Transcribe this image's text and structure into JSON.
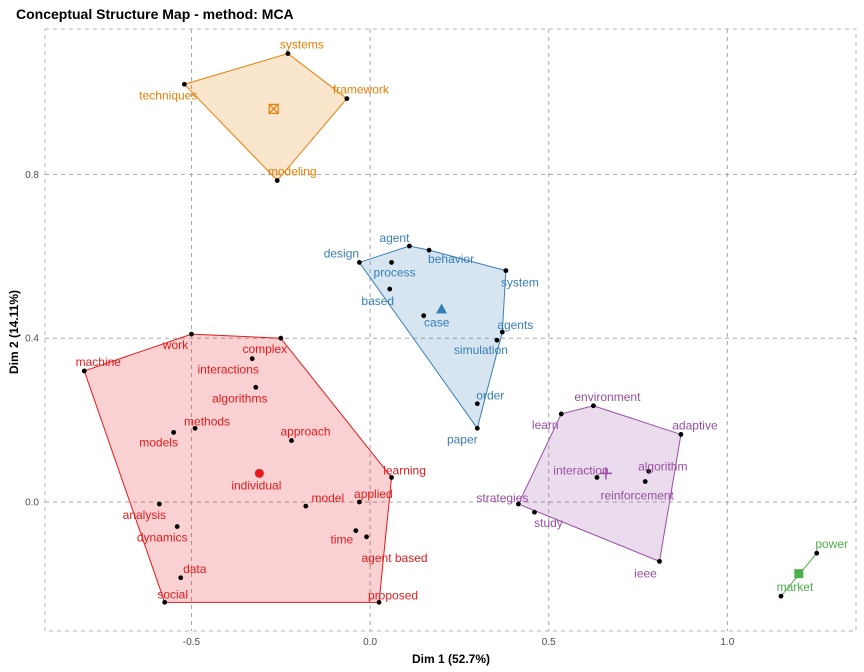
{
  "chart_data": {
    "type": "scatter",
    "title": "Conceptual Structure Map - method: MCA",
    "xlabel": "Dim 1 (52.7%)",
    "ylabel": "Dim 2 (14.11%)",
    "xlim": [
      -0.91,
      1.36
    ],
    "ylim": [
      -0.315,
      1.155
    ],
    "x_ticks": [
      -0.5,
      0.0,
      0.5,
      1.0
    ],
    "x_tick_labels": [
      "-0.5",
      "0.0",
      "0.5",
      "1.0"
    ],
    "y_ticks": [
      0.0,
      0.4,
      0.8
    ],
    "y_tick_labels": [
      "0.0",
      "0.4",
      "0.8"
    ],
    "grid": "dashed",
    "clusters": [
      {
        "color": "#E41A1C",
        "centroid": {
          "x": -0.31,
          "y": 0.07,
          "shape": "circle"
        },
        "hull": [
          [
            -0.8,
            0.32
          ],
          [
            -0.5,
            0.41
          ],
          [
            -0.25,
            0.4
          ],
          [
            0.06,
            0.06
          ],
          [
            0.025,
            -0.245
          ],
          [
            -0.575,
            -0.245
          ]
        ],
        "points": [
          {
            "label": "machine",
            "x": -0.8,
            "y": 0.32
          },
          {
            "label": "work",
            "x": -0.5,
            "y": 0.41
          },
          {
            "label": "complex",
            "x": -0.25,
            "y": 0.4
          },
          {
            "label": "interactions",
            "x": -0.33,
            "y": 0.35
          },
          {
            "label": "algorithms",
            "x": -0.32,
            "y": 0.28
          },
          {
            "label": "methods",
            "x": -0.49,
            "y": 0.18
          },
          {
            "label": "approach",
            "x": -0.22,
            "y": 0.15
          },
          {
            "label": "models",
            "x": -0.55,
            "y": 0.17
          },
          {
            "label": "individual",
            "x": -0.31,
            "y": 0.07
          },
          {
            "label": "learning",
            "x": 0.06,
            "y": 0.06
          },
          {
            "label": "applied",
            "x": -0.03,
            "y": 0.0
          },
          {
            "label": "model",
            "x": -0.18,
            "y": -0.01
          },
          {
            "label": "analysis",
            "x": -0.59,
            "y": -0.005
          },
          {
            "label": "time",
            "x": -0.04,
            "y": -0.07
          },
          {
            "label": "dynamics",
            "x": -0.54,
            "y": -0.06
          },
          {
            "label": "agent based",
            "x": -0.01,
            "y": -0.085
          },
          {
            "label": "data",
            "x": -0.53,
            "y": -0.185
          },
          {
            "label": "social",
            "x": -0.575,
            "y": -0.245
          },
          {
            "label": "proposed",
            "x": 0.025,
            "y": -0.245
          }
        ]
      },
      {
        "color": "#377EB8",
        "centroid": {
          "x": 0.2,
          "y": 0.47,
          "shape": "triangle"
        },
        "hull": [
          [
            -0.03,
            0.585
          ],
          [
            0.11,
            0.625
          ],
          [
            0.165,
            0.615
          ],
          [
            0.38,
            0.565
          ],
          [
            0.37,
            0.415
          ],
          [
            0.3,
            0.18
          ]
        ],
        "points": [
          {
            "label": "design",
            "x": -0.03,
            "y": 0.585
          },
          {
            "label": "agent",
            "x": 0.11,
            "y": 0.625
          },
          {
            "label": "behavior",
            "x": 0.165,
            "y": 0.615
          },
          {
            "label": "process",
            "x": 0.06,
            "y": 0.585
          },
          {
            "label": "system",
            "x": 0.38,
            "y": 0.565
          },
          {
            "label": "based",
            "x": 0.055,
            "y": 0.52
          },
          {
            "label": "case",
            "x": 0.15,
            "y": 0.455
          },
          {
            "label": "agents",
            "x": 0.37,
            "y": 0.415
          },
          {
            "label": "simulation",
            "x": 0.355,
            "y": 0.395
          },
          {
            "label": "order",
            "x": 0.3,
            "y": 0.24
          },
          {
            "label": "paper",
            "x": 0.3,
            "y": 0.18
          }
        ]
      },
      {
        "color": "#984EA3",
        "centroid": {
          "x": 0.66,
          "y": 0.07,
          "shape": "plus"
        },
        "hull": [
          [
            0.415,
            -0.005
          ],
          [
            0.535,
            0.215
          ],
          [
            0.625,
            0.235
          ],
          [
            0.87,
            0.165
          ],
          [
            0.81,
            -0.145
          ]
        ],
        "points": [
          {
            "label": "environment",
            "x": 0.625,
            "y": 0.235
          },
          {
            "label": "learn",
            "x": 0.535,
            "y": 0.215
          },
          {
            "label": "adaptive",
            "x": 0.87,
            "y": 0.165
          },
          {
            "label": "interaction",
            "x": 0.635,
            "y": 0.06
          },
          {
            "label": "algorithm",
            "x": 0.78,
            "y": 0.075
          },
          {
            "label": "reinforcement",
            "x": 0.77,
            "y": 0.05
          },
          {
            "label": "strategies",
            "x": 0.415,
            "y": -0.005
          },
          {
            "label": "study",
            "x": 0.46,
            "y": -0.025
          },
          {
            "label": "ieee",
            "x": 0.81,
            "y": -0.145
          }
        ]
      },
      {
        "color": "#E87E04",
        "centroid": {
          "x": -0.27,
          "y": 0.96,
          "shape": "square-x"
        },
        "hull": [
          [
            -0.52,
            1.02
          ],
          [
            -0.23,
            1.095
          ],
          [
            -0.065,
            0.985
          ],
          [
            -0.26,
            0.785
          ]
        ],
        "points": [
          {
            "label": "systems",
            "x": -0.23,
            "y": 1.095
          },
          {
            "label": "techniques",
            "x": -0.52,
            "y": 1.02
          },
          {
            "label": "framework",
            "x": -0.065,
            "y": 0.985
          },
          {
            "label": "modeling",
            "x": -0.26,
            "y": 0.785
          }
        ]
      },
      {
        "color": "#4DAF4A",
        "centroid": {
          "x": 1.2,
          "y": -0.175,
          "shape": "square"
        },
        "hull": [
          [
            1.25,
            -0.125
          ],
          [
            1.15,
            -0.23
          ]
        ],
        "points": [
          {
            "label": "power",
            "x": 1.25,
            "y": -0.125
          },
          {
            "label": "market",
            "x": 1.15,
            "y": -0.23
          }
        ]
      }
    ]
  }
}
